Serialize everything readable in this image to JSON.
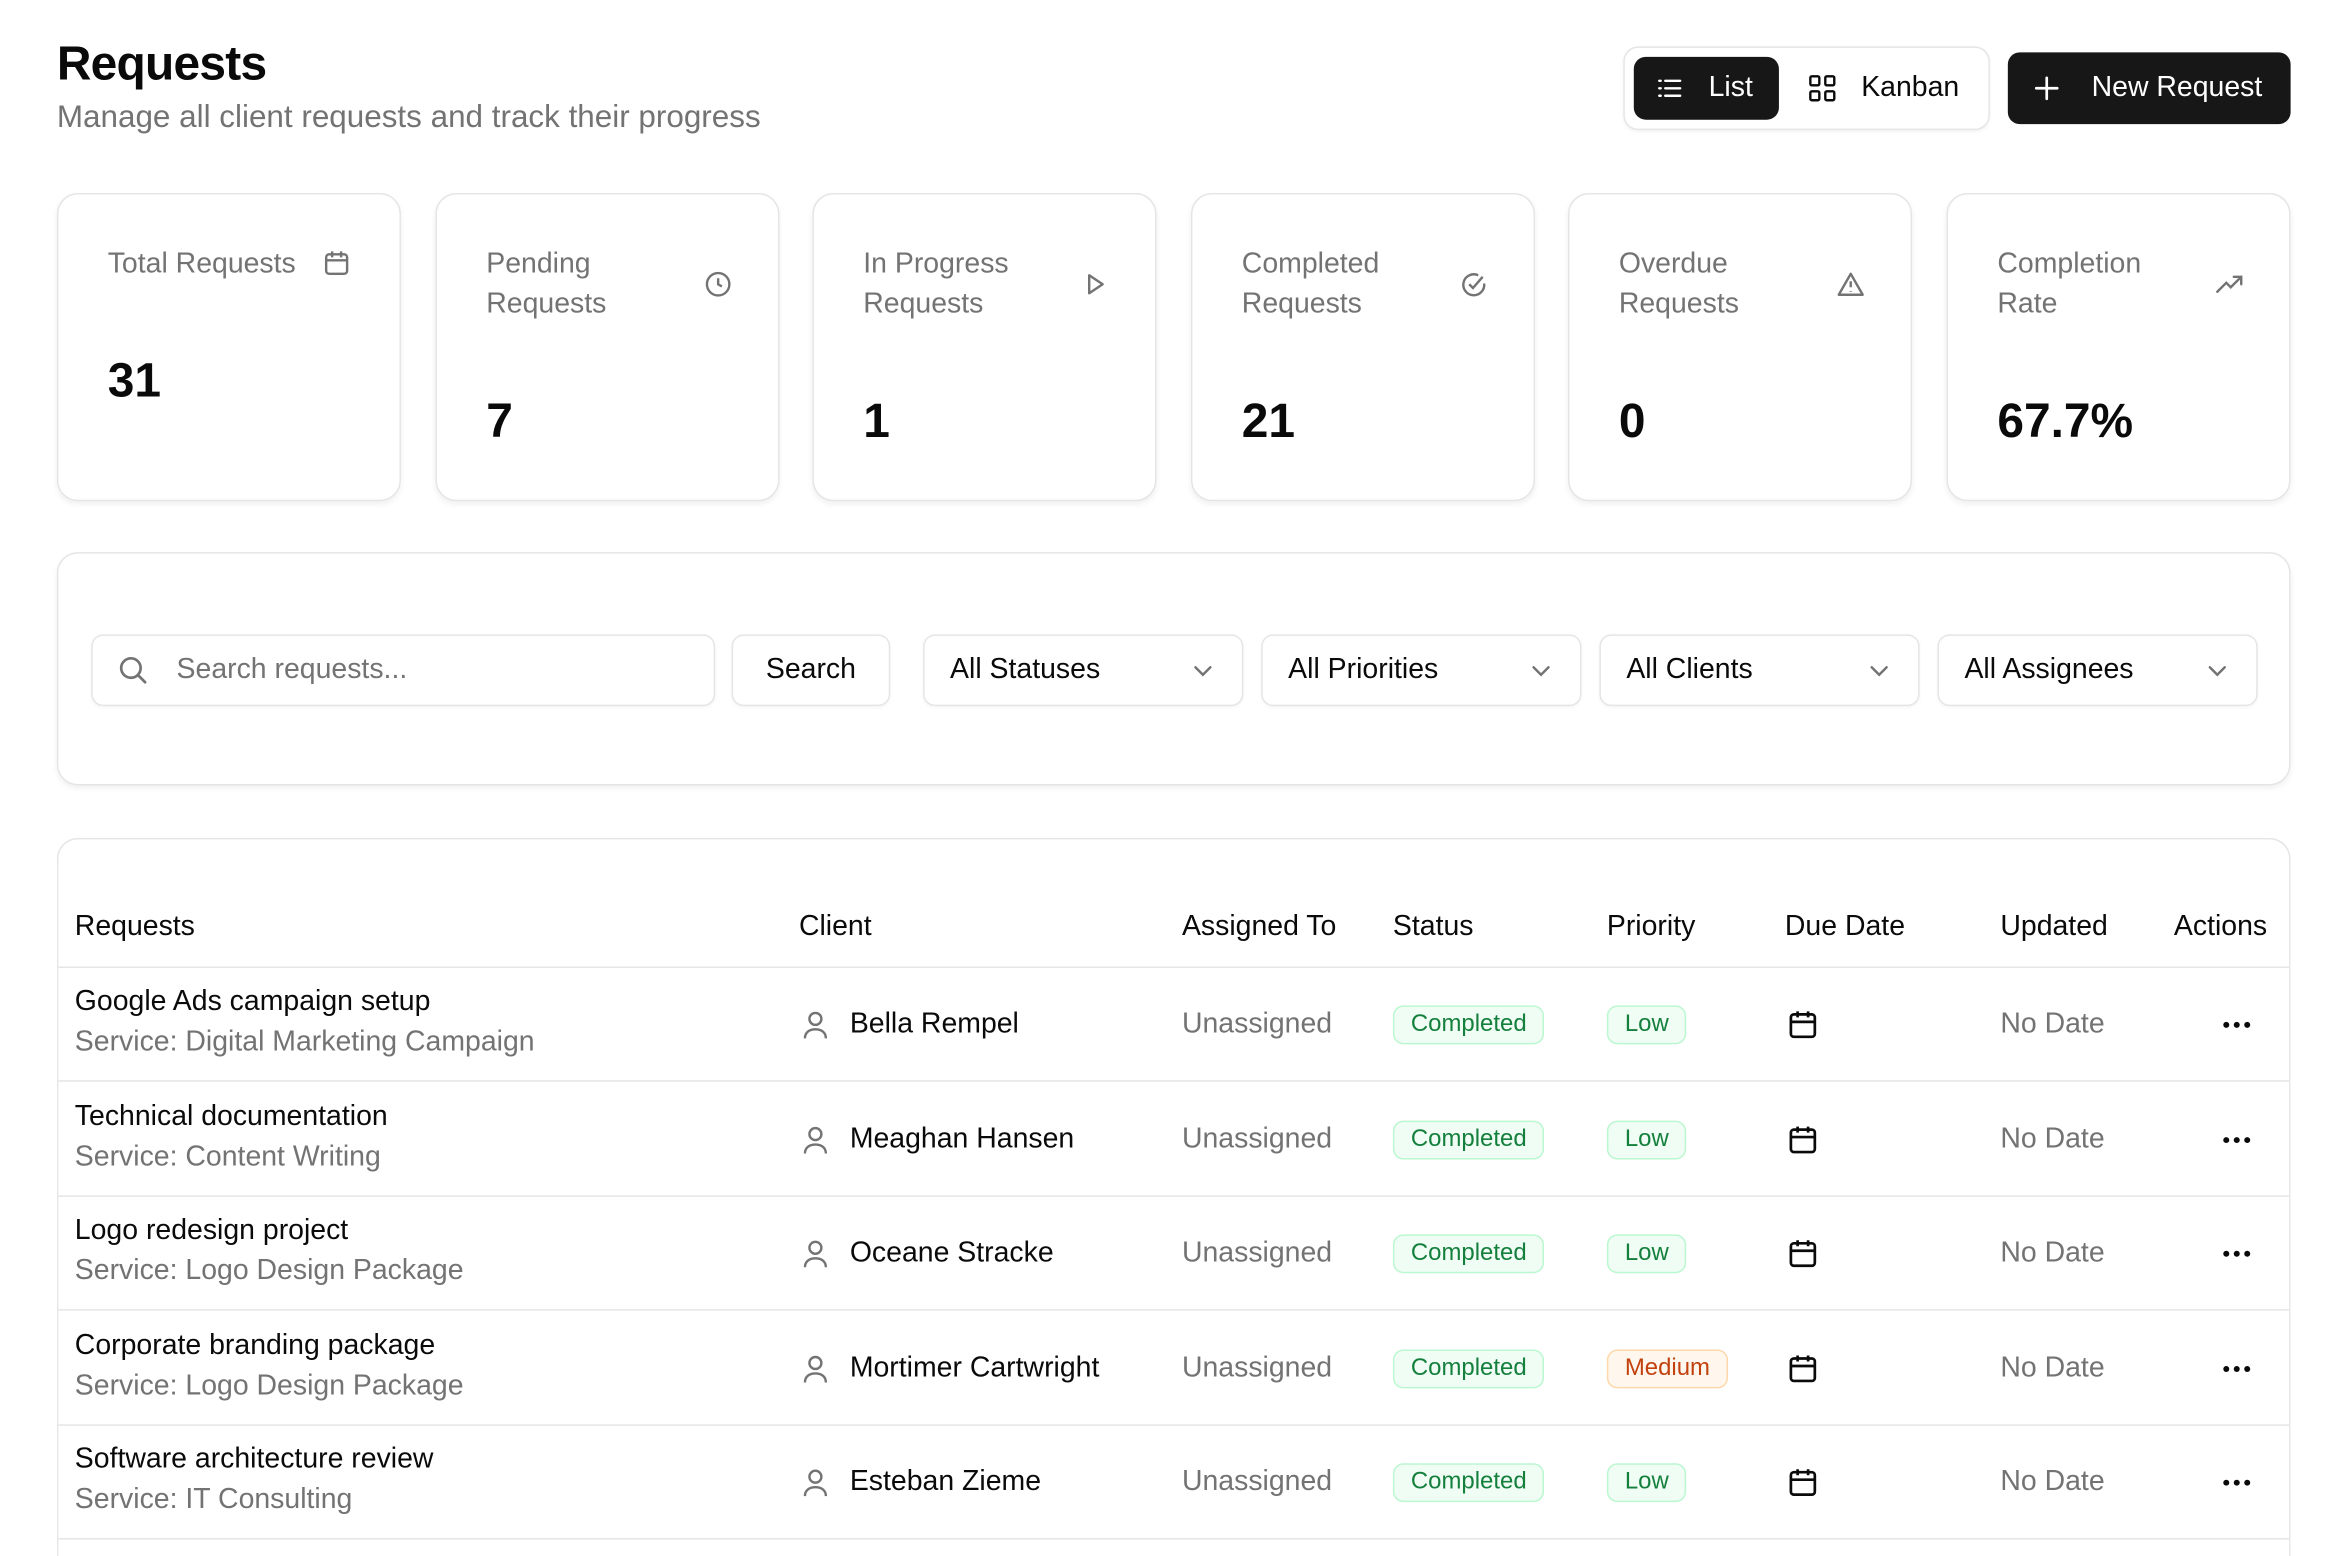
{
  "header": {
    "title": "Requests",
    "subtitle": "Manage all client requests and track their progress"
  },
  "view_toggle": {
    "list_label": "List",
    "kanban_label": "Kanban",
    "active": "List"
  },
  "new_request_label": "New Request",
  "stats": [
    {
      "label": "Total Requests",
      "value": "31",
      "icon": "calendar-icon"
    },
    {
      "label": "Pending Requests",
      "value": "7",
      "icon": "clock-icon"
    },
    {
      "label": "In Progress Requests",
      "value": "1",
      "icon": "play-icon"
    },
    {
      "label": "Completed Requests",
      "value": "21",
      "icon": "check-circle-icon"
    },
    {
      "label": "Overdue Requests",
      "value": "0",
      "icon": "alert-triangle-icon"
    },
    {
      "label": "Completion Rate",
      "value": "67.7%",
      "icon": "trending-up-icon"
    }
  ],
  "filters": {
    "search_placeholder": "Search requests...",
    "search_value": "",
    "search_button": "Search",
    "status": "All Statuses",
    "priority": "All Priorities",
    "client": "All Clients",
    "assignee": "All Assignees"
  },
  "table": {
    "columns": [
      "Requests",
      "Client",
      "Assigned To",
      "Status",
      "Priority",
      "Due Date",
      "Updated",
      "Actions"
    ],
    "rows": [
      {
        "name": "Google Ads campaign setup",
        "service": "Service: Digital Marketing Campaign",
        "client": "Bella Rempel",
        "assigned": "Unassigned",
        "status": "Completed",
        "priority": "Low",
        "updated": "No Date"
      },
      {
        "name": "Technical documentation",
        "service": "Service: Content Writing",
        "client": "Meaghan Hansen",
        "assigned": "Unassigned",
        "status": "Completed",
        "priority": "Low",
        "updated": "No Date"
      },
      {
        "name": "Logo redesign project",
        "service": "Service: Logo Design Package",
        "client": "Oceane Stracke",
        "assigned": "Unassigned",
        "status": "Completed",
        "priority": "Low",
        "updated": "No Date"
      },
      {
        "name": "Corporate branding package",
        "service": "Service: Logo Design Package",
        "client": "Mortimer Cartwright",
        "assigned": "Unassigned",
        "status": "Completed",
        "priority": "Medium",
        "updated": "No Date"
      },
      {
        "name": "Software architecture review",
        "service": "Service: IT Consulting",
        "client": "Esteban Zieme",
        "assigned": "Unassigned",
        "status": "Completed",
        "priority": "Low",
        "updated": "No Date"
      }
    ]
  },
  "colors": {
    "primary": "#171717",
    "completed_text": "#15803d",
    "completed_bg": "#f0fdf4",
    "medium_text": "#c2410c",
    "medium_bg": "#fff7ed",
    "muted": "#737373",
    "border": "#e5e5e5"
  }
}
